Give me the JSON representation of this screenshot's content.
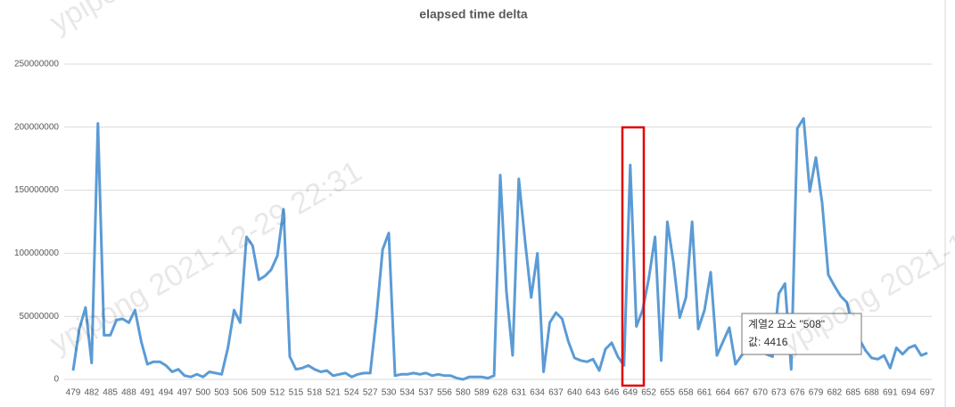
{
  "chart_data": {
    "type": "line",
    "title": "elapsed time delta",
    "watermark": "ypipong 2021-12-29 22:31",
    "tooltip": {
      "series_label": "계열2 요소 \"508\"",
      "value_label": "값: 4416"
    },
    "categories": [
      "479",
      null,
      null,
      "482",
      null,
      null,
      "485",
      null,
      null,
      "488",
      null,
      null,
      "491",
      null,
      null,
      "494",
      null,
      null,
      "497",
      null,
      null,
      "500",
      null,
      null,
      "503",
      null,
      null,
      "506",
      null,
      null,
      "509",
      null,
      null,
      "512",
      null,
      null,
      "515",
      null,
      null,
      "518",
      null,
      null,
      "521",
      null,
      null,
      "524",
      null,
      null,
      "527",
      null,
      null,
      "530",
      null,
      null,
      "534",
      null,
      null,
      "537",
      null,
      null,
      "556",
      null,
      null,
      "580",
      null,
      null,
      "589",
      null,
      null,
      "628",
      null,
      null,
      "631",
      null,
      null,
      "634",
      null,
      null,
      "637",
      null,
      null,
      "640",
      null,
      null,
      "643",
      null,
      null,
      "646",
      null,
      null,
      "649",
      null,
      null,
      "652",
      null,
      null,
      "655",
      null,
      null,
      "658",
      null,
      null,
      "661",
      null,
      null,
      "664",
      null,
      null,
      "667",
      null,
      null,
      "670",
      null,
      null,
      "673",
      null,
      null,
      "676",
      null,
      null,
      "679",
      null,
      null,
      "682",
      null,
      null,
      "685",
      null,
      null,
      "688",
      null,
      null,
      "691",
      null,
      null,
      "694",
      null,
      null,
      "697"
    ],
    "series": [
      {
        "name": "계열2",
        "color": "#5b9bd5",
        "values": [
          7000000,
          40000000,
          57000000,
          13000000,
          203000000,
          35000000,
          35000000,
          47000000,
          48000000,
          45000000,
          55000000,
          30000000,
          12000000,
          14000000,
          14000000,
          11000000,
          6000000,
          8000000,
          3000000,
          2000000,
          4000000,
          2000000,
          6000000,
          5000000,
          4000000,
          25000000,
          55000000,
          45000000,
          113000000,
          106000000,
          79000000,
          82000000,
          87000000,
          98000000,
          135000000,
          18000000,
          8000000,
          9000000,
          11000000,
          8000000,
          6000000,
          7000000,
          3000000,
          4000000,
          5000000,
          2000000,
          4000000,
          5000000,
          5000000,
          50000000,
          103000000,
          116000000,
          3000000,
          4000000,
          4000000,
          5000000,
          4000000,
          5000000,
          3000000,
          4000000,
          3000000,
          3000000,
          1000000,
          0,
          2000000,
          2000000,
          2000000,
          1000000,
          3000000,
          162000000,
          70000000,
          19000000,
          159000000,
          110000000,
          65000000,
          100000000,
          6000000,
          45000000,
          53000000,
          48000000,
          30000000,
          17000000,
          15000000,
          14000000,
          16000000,
          7000000,
          24000000,
          29000000,
          18000000,
          11000000,
          170000000,
          42000000,
          55000000,
          80000000,
          113000000,
          15000000,
          125000000,
          92000000,
          49000000,
          65000000,
          125000000,
          40000000,
          55000000,
          85000000,
          19000000,
          30000000,
          41000000,
          12000000,
          19000000,
          25000000,
          22000000,
          24000000,
          20000000,
          18000000,
          68000000,
          76000000,
          8000000,
          199000000,
          207000000,
          149000000,
          176000000,
          140000000,
          83000000,
          74000000,
          66000000,
          61000000,
          40000000,
          32000000,
          23000000,
          17000000,
          16000000,
          19000000,
          9000000,
          25000000,
          20000000,
          25000000,
          27000000,
          19000000,
          21000000
        ]
      }
    ],
    "ylim": [
      0,
      250000000
    ],
    "yticks": [
      0,
      50000000,
      100000000,
      150000000,
      200000000,
      250000000
    ],
    "grid": true
  }
}
